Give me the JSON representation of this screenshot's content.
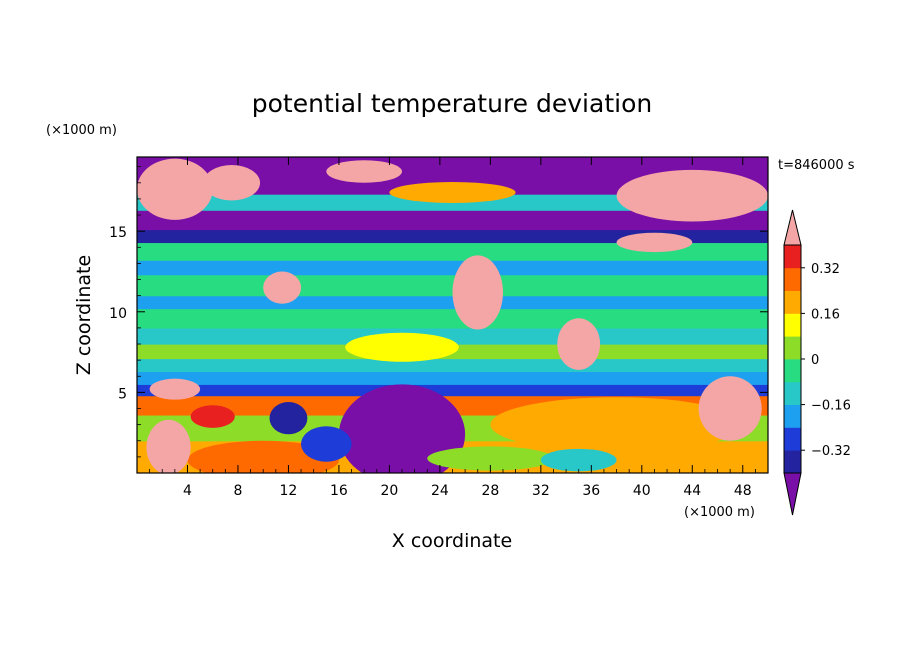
{
  "chart_data": {
    "type": "heatmap",
    "title": "potential temperature deviation",
    "xlabel": "X coordinate",
    "ylabel": "Z coordinate",
    "x_unit_label": "(×1000 m)",
    "y_unit_label": "(×1000 m)",
    "time_label": "t=846000 s",
    "xlim": [
      0,
      50
    ],
    "ylim": [
      0,
      19.6
    ],
    "x_ticks": [
      4,
      8,
      12,
      16,
      20,
      24,
      28,
      32,
      36,
      40,
      44,
      48
    ],
    "y_ticks": [
      5,
      10,
      15
    ],
    "grid": false,
    "legend": "right colorbar with triangular extension ends",
    "colorbar": {
      "levels": [
        -0.4,
        -0.32,
        -0.24,
        -0.16,
        -0.08,
        0,
        0.08,
        0.16,
        0.24,
        0.32,
        0.4
      ],
      "colors": [
        "#7a0fa8",
        "#2323a0",
        "#1e3cd8",
        "#1ea0f0",
        "#28c8c8",
        "#28dc82",
        "#8cdc28",
        "#ffff00",
        "#ffaa00",
        "#ff6a00",
        "#e82020",
        "#f4a6a6"
      ],
      "labels": [
        {
          "value": 0.32,
          "text": "0.32"
        },
        {
          "value": 0.16,
          "text": "0.16"
        },
        {
          "value": 0,
          "text": "0"
        },
        {
          "value": -0.16,
          "text": "−0.16"
        },
        {
          "value": -0.32,
          "text": "−0.32"
        }
      ]
    },
    "bands": [
      {
        "z0": 0,
        "z1": 2.0,
        "value": 0.18
      },
      {
        "z0": 2.0,
        "z1": 3.6,
        "value": 0.06
      },
      {
        "z0": 3.6,
        "z1": 4.8,
        "value": 0.25
      },
      {
        "z0": 4.8,
        "z1": 5.5,
        "value": -0.3
      },
      {
        "z0": 5.5,
        "z1": 6.3,
        "value": -0.2
      },
      {
        "z0": 6.3,
        "z1": 7.1,
        "value": -0.1
      },
      {
        "z0": 7.1,
        "z1": 8.0,
        "value": 0.02
      },
      {
        "z0": 8.0,
        "z1": 9.0,
        "value": -0.1
      },
      {
        "z0": 9.0,
        "z1": 10.2,
        "value": -0.02
      },
      {
        "z0": 10.2,
        "z1": 11.0,
        "value": -0.18
      },
      {
        "z0": 11.0,
        "z1": 12.3,
        "value": -0.08
      },
      {
        "z0": 12.3,
        "z1": 13.2,
        "value": -0.17
      },
      {
        "z0": 13.2,
        "z1": 14.3,
        "value": -0.06
      },
      {
        "z0": 14.3,
        "z1": 15.1,
        "value": -0.34
      },
      {
        "z0": 15.1,
        "z1": 16.3,
        "value": -0.45
      },
      {
        "z0": 16.3,
        "z1": 17.3,
        "value": -0.1
      },
      {
        "z0": 17.3,
        "z1": 19.6,
        "value": -0.45
      }
    ],
    "blobs": [
      {
        "x": 10,
        "z": 0.8,
        "w": 12,
        "h": 2.4,
        "value": 0.3
      },
      {
        "x": 2.5,
        "z": 1.6,
        "w": 3.5,
        "h": 3.4,
        "value": 0.44
      },
      {
        "x": 6,
        "z": 3.5,
        "w": 3.5,
        "h": 1.4,
        "value": 0.36
      },
      {
        "x": 21,
        "z": 2.4,
        "w": 10,
        "h": 6.2,
        "value": -0.45
      },
      {
        "x": 15,
        "z": 1.8,
        "w": 4,
        "h": 2.2,
        "value": -0.3
      },
      {
        "x": 12,
        "z": 3.4,
        "w": 3,
        "h": 2.0,
        "value": -0.33
      },
      {
        "x": 38,
        "z": 3.0,
        "w": 20,
        "h": 3.4,
        "value": 0.22
      },
      {
        "x": 47,
        "z": 4.0,
        "w": 5,
        "h": 4.0,
        "value": 0.44
      },
      {
        "x": 28,
        "z": 0.9,
        "w": 10,
        "h": 1.5,
        "value": 0.05
      },
      {
        "x": 35,
        "z": 0.8,
        "w": 6,
        "h": 1.4,
        "value": -0.14
      },
      {
        "x": 3,
        "z": 5.2,
        "w": 4,
        "h": 1.3,
        "value": 0.44
      },
      {
        "x": 27,
        "z": 11.2,
        "w": 4,
        "h": 4.6,
        "value": 0.44
      },
      {
        "x": 11.5,
        "z": 11.5,
        "w": 3,
        "h": 2.0,
        "value": 0.44
      },
      {
        "x": 21,
        "z": 7.8,
        "w": 9,
        "h": 1.8,
        "value": 0.1
      },
      {
        "x": 35,
        "z": 8.0,
        "w": 3.4,
        "h": 3.2,
        "value": 0.44
      },
      {
        "x": 3,
        "z": 17.6,
        "w": 6,
        "h": 3.8,
        "value": 0.44
      },
      {
        "x": 18,
        "z": 18.7,
        "w": 6,
        "h": 1.4,
        "value": 0.44
      },
      {
        "x": 7.5,
        "z": 18.0,
        "w": 4.5,
        "h": 2.2,
        "value": 0.44
      },
      {
        "x": 44,
        "z": 17.2,
        "w": 12,
        "h": 3.2,
        "value": 0.44
      },
      {
        "x": 25,
        "z": 17.4,
        "w": 10,
        "h": 1.3,
        "value": 0.18
      },
      {
        "x": 41,
        "z": 14.3,
        "w": 6,
        "h": 1.2,
        "value": 0.44
      }
    ]
  }
}
